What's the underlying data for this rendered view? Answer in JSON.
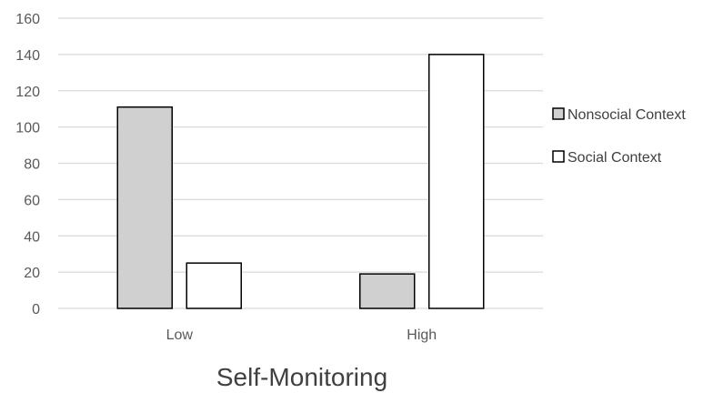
{
  "chart_data": {
    "type": "bar",
    "categories": [
      "Low",
      "High"
    ],
    "series": [
      {
        "name": "Nonsocial Context",
        "values": [
          111,
          19
        ],
        "color": "#d0d0d0"
      },
      {
        "name": "Social Context",
        "values": [
          25,
          140
        ],
        "color": "#ffffff"
      }
    ],
    "xlabel": "Self-Monitoring",
    "ylabel": "",
    "ylim": [
      0,
      160
    ],
    "yticks": [
      0,
      20,
      40,
      60,
      80,
      100,
      120,
      140,
      160
    ],
    "grid": true,
    "legend_position": "right",
    "bar_outline_color": "#000000",
    "grid_color": "#d9d9d9"
  }
}
